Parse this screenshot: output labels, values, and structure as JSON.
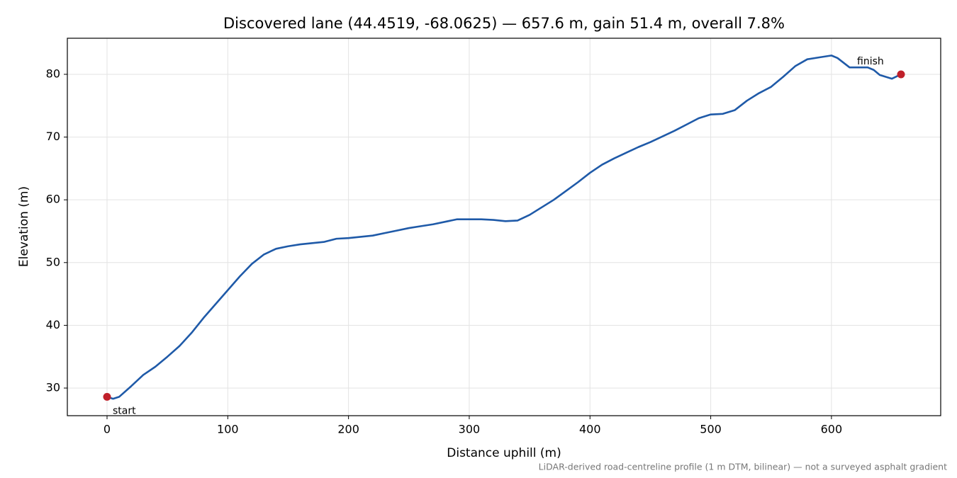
{
  "chart_data": {
    "type": "line",
    "title": "Discovered lane (44.4519, -68.0625) — 657.6 m, gain 51.4 m, overall 7.8%",
    "x_label": "Distance uphill (m)",
    "y_label": "Elevation (m)",
    "footnote": "LiDAR-derived road-centreline profile (1 m DTM, bilinear) — not a surveyed asphalt gradient",
    "x": [
      0,
      5,
      10,
      20,
      30,
      40,
      50,
      60,
      70,
      80,
      90,
      100,
      110,
      120,
      130,
      140,
      150,
      160,
      170,
      180,
      190,
      200,
      210,
      220,
      230,
      240,
      250,
      260,
      270,
      280,
      290,
      300,
      310,
      320,
      330,
      340,
      350,
      360,
      370,
      380,
      390,
      400,
      410,
      420,
      430,
      440,
      450,
      460,
      470,
      480,
      490,
      500,
      510,
      520,
      530,
      540,
      550,
      560,
      570,
      580,
      590,
      600,
      605,
      615,
      630,
      635,
      640,
      650,
      657.6
    ],
    "series": [
      {
        "name": "Elevation",
        "color": "#1f5aa8",
        "values": [
          28.6,
          28.3,
          28.6,
          30.3,
          32.1,
          33.4,
          35.0,
          36.7,
          38.8,
          41.2,
          43.4,
          45.6,
          47.8,
          49.8,
          51.3,
          52.2,
          52.6,
          52.9,
          53.1,
          53.3,
          53.8,
          53.9,
          54.1,
          54.3,
          54.7,
          55.1,
          55.5,
          55.8,
          56.1,
          56.5,
          56.9,
          56.9,
          56.9,
          56.8,
          56.6,
          56.7,
          57.6,
          58.8,
          60.0,
          61.4,
          62.8,
          64.3,
          65.6,
          66.6,
          67.5,
          68.4,
          69.2,
          70.1,
          71.0,
          72.0,
          73.0,
          73.6,
          73.7,
          74.3,
          75.8,
          77.0,
          78.0,
          79.6,
          81.3,
          82.4,
          82.7,
          83.0,
          82.6,
          81.1,
          81.1,
          80.7,
          79.9,
          79.3,
          80.0
        ]
      }
    ],
    "marker_color": "#c0202a",
    "annotations": [
      "start",
      "finish"
    ],
    "xlim": [
      -32.88,
      690.48
    ],
    "ylim": [
      25.6,
      85.75
    ],
    "xticks": [
      0,
      100,
      200,
      300,
      400,
      500,
      600
    ],
    "yticks": [
      30,
      40,
      50,
      60,
      70,
      80
    ],
    "grid": true
  }
}
